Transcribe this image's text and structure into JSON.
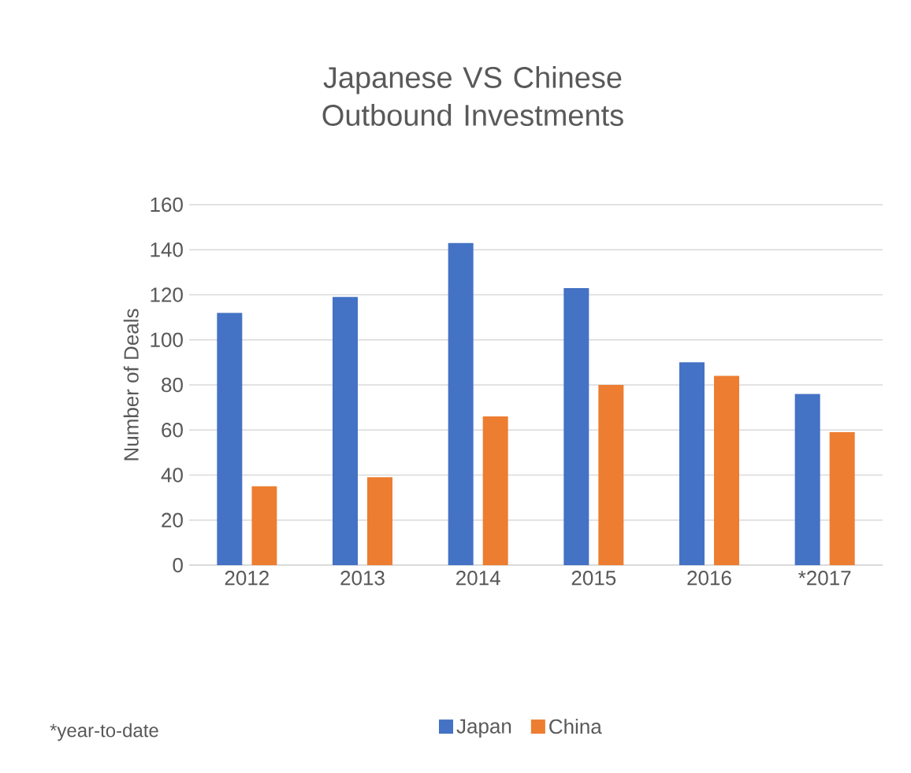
{
  "chart_data": {
    "type": "bar",
    "title": "Japanese VS Chinese Outbound Investments",
    "ylabel": "Number of Deals",
    "categories": [
      "2012",
      "2013",
      "2014",
      "2015",
      "2016",
      "*2017"
    ],
    "series": [
      {
        "name": "Japan",
        "color": "#4472c4",
        "values": [
          112,
          119,
          143,
          123,
          90,
          76
        ]
      },
      {
        "name": "China",
        "color": "#ed7d31",
        "values": [
          35,
          39,
          66,
          80,
          84,
          59
        ]
      }
    ],
    "ylim": [
      0,
      160
    ],
    "yticks": [
      0,
      20,
      40,
      60,
      80,
      100,
      120,
      140,
      160
    ],
    "grid": "y",
    "legend": "bottom",
    "annotations": [
      "*year-to-date"
    ]
  }
}
